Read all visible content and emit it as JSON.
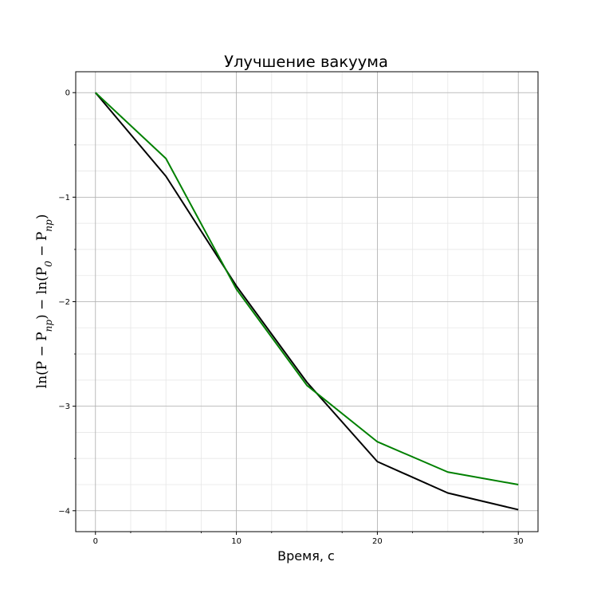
{
  "chart_data": {
    "type": "line",
    "title": "Улучшение вакуума",
    "xlabel": "Время, с",
    "ylabel": "ln(P − P_пр) − ln(P_0 − P_пр)",
    "x": [
      0,
      5,
      10,
      15,
      20,
      25,
      30
    ],
    "xlim": [
      -1.4,
      31.4
    ],
    "ylim": [
      -4.2,
      0.2
    ],
    "xticks": [
      0,
      10,
      20,
      30
    ],
    "yticks": [
      0,
      -1,
      -2,
      -3,
      -4
    ],
    "ytick_labels": [
      "0",
      "−1",
      "−2",
      "−3",
      "−4"
    ],
    "grid": true,
    "minor_grid": true,
    "series": [
      {
        "color": "#000000",
        "values": [
          0,
          -0.8,
          -1.85,
          -2.77,
          -3.53,
          -3.83,
          -3.99
        ]
      },
      {
        "color": "#008000",
        "values": [
          0,
          -0.63,
          -1.88,
          -2.8,
          -3.34,
          -3.63,
          -3.75
        ]
      }
    ]
  }
}
